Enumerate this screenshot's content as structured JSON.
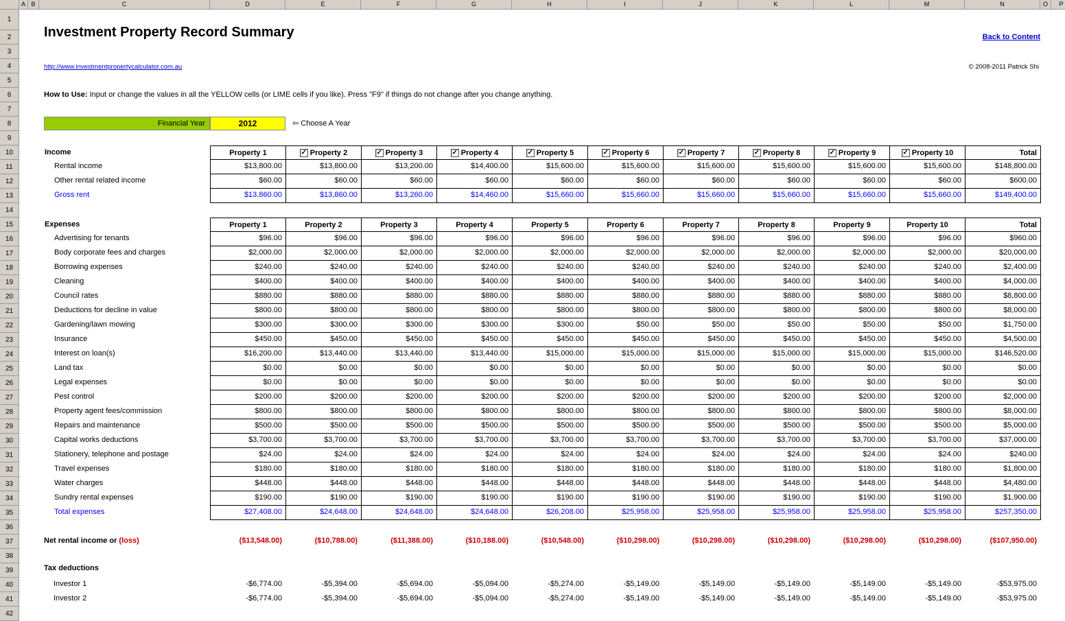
{
  "app": {
    "column_headers": [
      "A",
      "B",
      "C",
      "D",
      "E",
      "F",
      "G",
      "H",
      "I",
      "J",
      "K",
      "L",
      "M",
      "N",
      "O",
      "P"
    ],
    "row_count": 42
  },
  "header": {
    "title": "Investment Property Record Summary",
    "back_link": "Back to Content",
    "url": "http://www.investmentpropertycalculator.com.au",
    "copyright": "© 2008-2011 Patrick Shi",
    "howto_label": "How to Use:",
    "howto_text": "Input or change the values in all the YELLOW cells (or LIME cells if you like). Press \"F9\" if things do not change after you change anything."
  },
  "year_selector": {
    "label": "Financial Year",
    "value": "2012",
    "hint": "⇦ Choose A Year"
  },
  "colors": {
    "year_label_bg": "#99CC00",
    "year_value_bg": "#FFFF00",
    "formula_blue": "#0000FF",
    "loss_red": "#CC0000",
    "link_blue": "#0000CC"
  },
  "income_table": {
    "section_label": "Income",
    "columns": [
      {
        "label": "Property 1",
        "checkbox": false
      },
      {
        "label": "Property 2",
        "checkbox": true
      },
      {
        "label": "Property 3",
        "checkbox": true
      },
      {
        "label": "Property 4",
        "checkbox": true
      },
      {
        "label": "Property 5",
        "checkbox": true
      },
      {
        "label": "Property 6",
        "checkbox": true
      },
      {
        "label": "Property 7",
        "checkbox": true
      },
      {
        "label": "Property 8",
        "checkbox": true
      },
      {
        "label": "Property 9",
        "checkbox": true
      },
      {
        "label": "Property 10",
        "checkbox": true
      },
      {
        "label": "Total",
        "checkbox": false
      }
    ],
    "rows": [
      {
        "label": "Rental income",
        "emphasis": false,
        "values": [
          "$13,800.00",
          "$13,800.00",
          "$13,200.00",
          "$14,400.00",
          "$15,600.00",
          "$15,600.00",
          "$15,600.00",
          "$15,600.00",
          "$15,600.00",
          "$15,600.00",
          "$148,800.00"
        ]
      },
      {
        "label": "Other rental related income",
        "emphasis": false,
        "values": [
          "$60.00",
          "$60.00",
          "$60.00",
          "$60.00",
          "$60.00",
          "$60.00",
          "$60.00",
          "$60.00",
          "$60.00",
          "$60.00",
          "$600.00"
        ]
      },
      {
        "label": "Gross rent",
        "emphasis": true,
        "values": [
          "$13,860.00",
          "$13,860.00",
          "$13,260.00",
          "$14,460.00",
          "$15,660.00",
          "$15,660.00",
          "$15,660.00",
          "$15,660.00",
          "$15,660.00",
          "$15,660.00",
          "$149,400.00"
        ]
      }
    ]
  },
  "expenses_table": {
    "section_label": "Expenses",
    "columns": [
      {
        "label": "Property 1"
      },
      {
        "label": "Property 2"
      },
      {
        "label": "Property 3"
      },
      {
        "label": "Property 4"
      },
      {
        "label": "Property 5"
      },
      {
        "label": "Property 6"
      },
      {
        "label": "Property 7"
      },
      {
        "label": "Property 8"
      },
      {
        "label": "Property 9"
      },
      {
        "label": "Property 10"
      },
      {
        "label": "Total"
      }
    ],
    "rows": [
      {
        "label": "Advertising for tenants",
        "emphasis": false,
        "values": [
          "$96.00",
          "$96.00",
          "$96.00",
          "$96.00",
          "$96.00",
          "$96.00",
          "$96.00",
          "$96.00",
          "$96.00",
          "$96.00",
          "$960.00"
        ]
      },
      {
        "label": "Body corporate fees and charges",
        "emphasis": false,
        "values": [
          "$2,000.00",
          "$2,000.00",
          "$2,000.00",
          "$2,000.00",
          "$2,000.00",
          "$2,000.00",
          "$2,000.00",
          "$2,000.00",
          "$2,000.00",
          "$2,000.00",
          "$20,000.00"
        ]
      },
      {
        "label": "Borrowing expenses",
        "emphasis": false,
        "values": [
          "$240.00",
          "$240.00",
          "$240.00",
          "$240.00",
          "$240.00",
          "$240.00",
          "$240.00",
          "$240.00",
          "$240.00",
          "$240.00",
          "$2,400.00"
        ]
      },
      {
        "label": "Cleaning",
        "emphasis": false,
        "values": [
          "$400.00",
          "$400.00",
          "$400.00",
          "$400.00",
          "$400.00",
          "$400.00",
          "$400.00",
          "$400.00",
          "$400.00",
          "$400.00",
          "$4,000.00"
        ]
      },
      {
        "label": "Council rates",
        "emphasis": false,
        "values": [
          "$880.00",
          "$880.00",
          "$880.00",
          "$880.00",
          "$880.00",
          "$880.00",
          "$880.00",
          "$880.00",
          "$880.00",
          "$880.00",
          "$8,800.00"
        ]
      },
      {
        "label": "Deductions for decline in value",
        "emphasis": false,
        "values": [
          "$800.00",
          "$800.00",
          "$800.00",
          "$800.00",
          "$800.00",
          "$800.00",
          "$800.00",
          "$800.00",
          "$800.00",
          "$800.00",
          "$8,000.00"
        ]
      },
      {
        "label": "Gardening/lawn mowing",
        "emphasis": false,
        "values": [
          "$300.00",
          "$300.00",
          "$300.00",
          "$300.00",
          "$300.00",
          "$50.00",
          "$50.00",
          "$50.00",
          "$50.00",
          "$50.00",
          "$1,750.00"
        ]
      },
      {
        "label": "Insurance",
        "emphasis": false,
        "values": [
          "$450.00",
          "$450.00",
          "$450.00",
          "$450.00",
          "$450.00",
          "$450.00",
          "$450.00",
          "$450.00",
          "$450.00",
          "$450.00",
          "$4,500.00"
        ]
      },
      {
        "label": "Interest on loan(s)",
        "emphasis": false,
        "values": [
          "$16,200.00",
          "$13,440.00",
          "$13,440.00",
          "$13,440.00",
          "$15,000.00",
          "$15,000.00",
          "$15,000.00",
          "$15,000.00",
          "$15,000.00",
          "$15,000.00",
          "$146,520.00"
        ]
      },
      {
        "label": "Land tax",
        "emphasis": false,
        "values": [
          "$0.00",
          "$0.00",
          "$0.00",
          "$0.00",
          "$0.00",
          "$0.00",
          "$0.00",
          "$0.00",
          "$0.00",
          "$0.00",
          "$0.00"
        ]
      },
      {
        "label": "Legal expenses",
        "emphasis": false,
        "values": [
          "$0.00",
          "$0.00",
          "$0.00",
          "$0.00",
          "$0.00",
          "$0.00",
          "$0.00",
          "$0.00",
          "$0.00",
          "$0.00",
          "$0.00"
        ]
      },
      {
        "label": "Pest control",
        "emphasis": false,
        "values": [
          "$200.00",
          "$200.00",
          "$200.00",
          "$200.00",
          "$200.00",
          "$200.00",
          "$200.00",
          "$200.00",
          "$200.00",
          "$200.00",
          "$2,000.00"
        ]
      },
      {
        "label": "Property agent fees/commission",
        "emphasis": false,
        "values": [
          "$800.00",
          "$800.00",
          "$800.00",
          "$800.00",
          "$800.00",
          "$800.00",
          "$800.00",
          "$800.00",
          "$800.00",
          "$800.00",
          "$8,000.00"
        ]
      },
      {
        "label": "Repairs and maintenance",
        "emphasis": false,
        "values": [
          "$500.00",
          "$500.00",
          "$500.00",
          "$500.00",
          "$500.00",
          "$500.00",
          "$500.00",
          "$500.00",
          "$500.00",
          "$500.00",
          "$5,000.00"
        ]
      },
      {
        "label": "Capital works deductions",
        "emphasis": false,
        "values": [
          "$3,700.00",
          "$3,700.00",
          "$3,700.00",
          "$3,700.00",
          "$3,700.00",
          "$3,700.00",
          "$3,700.00",
          "$3,700.00",
          "$3,700.00",
          "$3,700.00",
          "$37,000.00"
        ]
      },
      {
        "label": "Stationery, telephone and postage",
        "emphasis": false,
        "values": [
          "$24.00",
          "$24.00",
          "$24.00",
          "$24.00",
          "$24.00",
          "$24.00",
          "$24.00",
          "$24.00",
          "$24.00",
          "$24.00",
          "$240.00"
        ]
      },
      {
        "label": "Travel expenses",
        "emphasis": false,
        "values": [
          "$180.00",
          "$180.00",
          "$180.00",
          "$180.00",
          "$180.00",
          "$180.00",
          "$180.00",
          "$180.00",
          "$180.00",
          "$180.00",
          "$1,800.00"
        ]
      },
      {
        "label": "Water charges",
        "emphasis": false,
        "values": [
          "$448.00",
          "$448.00",
          "$448.00",
          "$448.00",
          "$448.00",
          "$448.00",
          "$448.00",
          "$448.00",
          "$448.00",
          "$448.00",
          "$4,480.00"
        ]
      },
      {
        "label": "Sundry rental expenses",
        "emphasis": false,
        "values": [
          "$190.00",
          "$190.00",
          "$190.00",
          "$190.00",
          "$190.00",
          "$190.00",
          "$190.00",
          "$190.00",
          "$190.00",
          "$190.00",
          "$1,900.00"
        ]
      },
      {
        "label": "Total expenses",
        "emphasis": true,
        "values": [
          "$27,408.00",
          "$24,648.00",
          "$24,648.00",
          "$24,648.00",
          "$26,208.00",
          "$25,958.00",
          "$25,958.00",
          "$25,958.00",
          "$25,958.00",
          "$25,958.00",
          "$257,350.00"
        ]
      }
    ]
  },
  "net_row": {
    "label_black": "Net rental income or ",
    "label_red": "(loss)",
    "values": [
      "($13,548.00)",
      "($10,788.00)",
      "($11,388.00)",
      "($10,188.00)",
      "($10,548.00)",
      "($10,298.00)",
      "($10,298.00)",
      "($10,298.00)",
      "($10,298.00)",
      "($10,298.00)",
      "($107,950.00)"
    ]
  },
  "tax_section": {
    "section_label": "Tax deductions",
    "rows": [
      {
        "label": "Investor 1",
        "values": [
          "-$6,774.00",
          "-$5,394.00",
          "-$5,694.00",
          "-$5,094.00",
          "-$5,274.00",
          "-$5,149.00",
          "-$5,149.00",
          "-$5,149.00",
          "-$5,149.00",
          "-$5,149.00",
          "-$53,975.00"
        ]
      },
      {
        "label": "Investor 2",
        "values": [
          "-$6,774.00",
          "-$5,394.00",
          "-$5,694.00",
          "-$5,094.00",
          "-$5,274.00",
          "-$5,149.00",
          "-$5,149.00",
          "-$5,149.00",
          "-$5,149.00",
          "-$5,149.00",
          "-$53,975.00"
        ]
      }
    ]
  }
}
